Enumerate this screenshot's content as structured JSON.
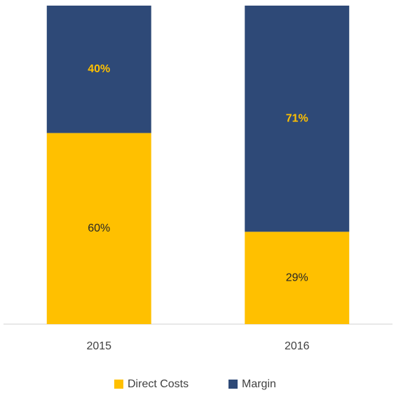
{
  "chart_data": {
    "type": "stacked_bar",
    "categories": [
      "2015",
      "2016"
    ],
    "series": [
      {
        "name": "Direct Costs",
        "color": "#FFC000",
        "values": [
          60,
          29
        ],
        "value_labels": [
          "60%",
          "29%"
        ]
      },
      {
        "name": "Margin",
        "color": "#2E4977",
        "values": [
          40,
          71
        ],
        "value_labels": [
          "40%",
          "71%"
        ]
      }
    ]
  }
}
